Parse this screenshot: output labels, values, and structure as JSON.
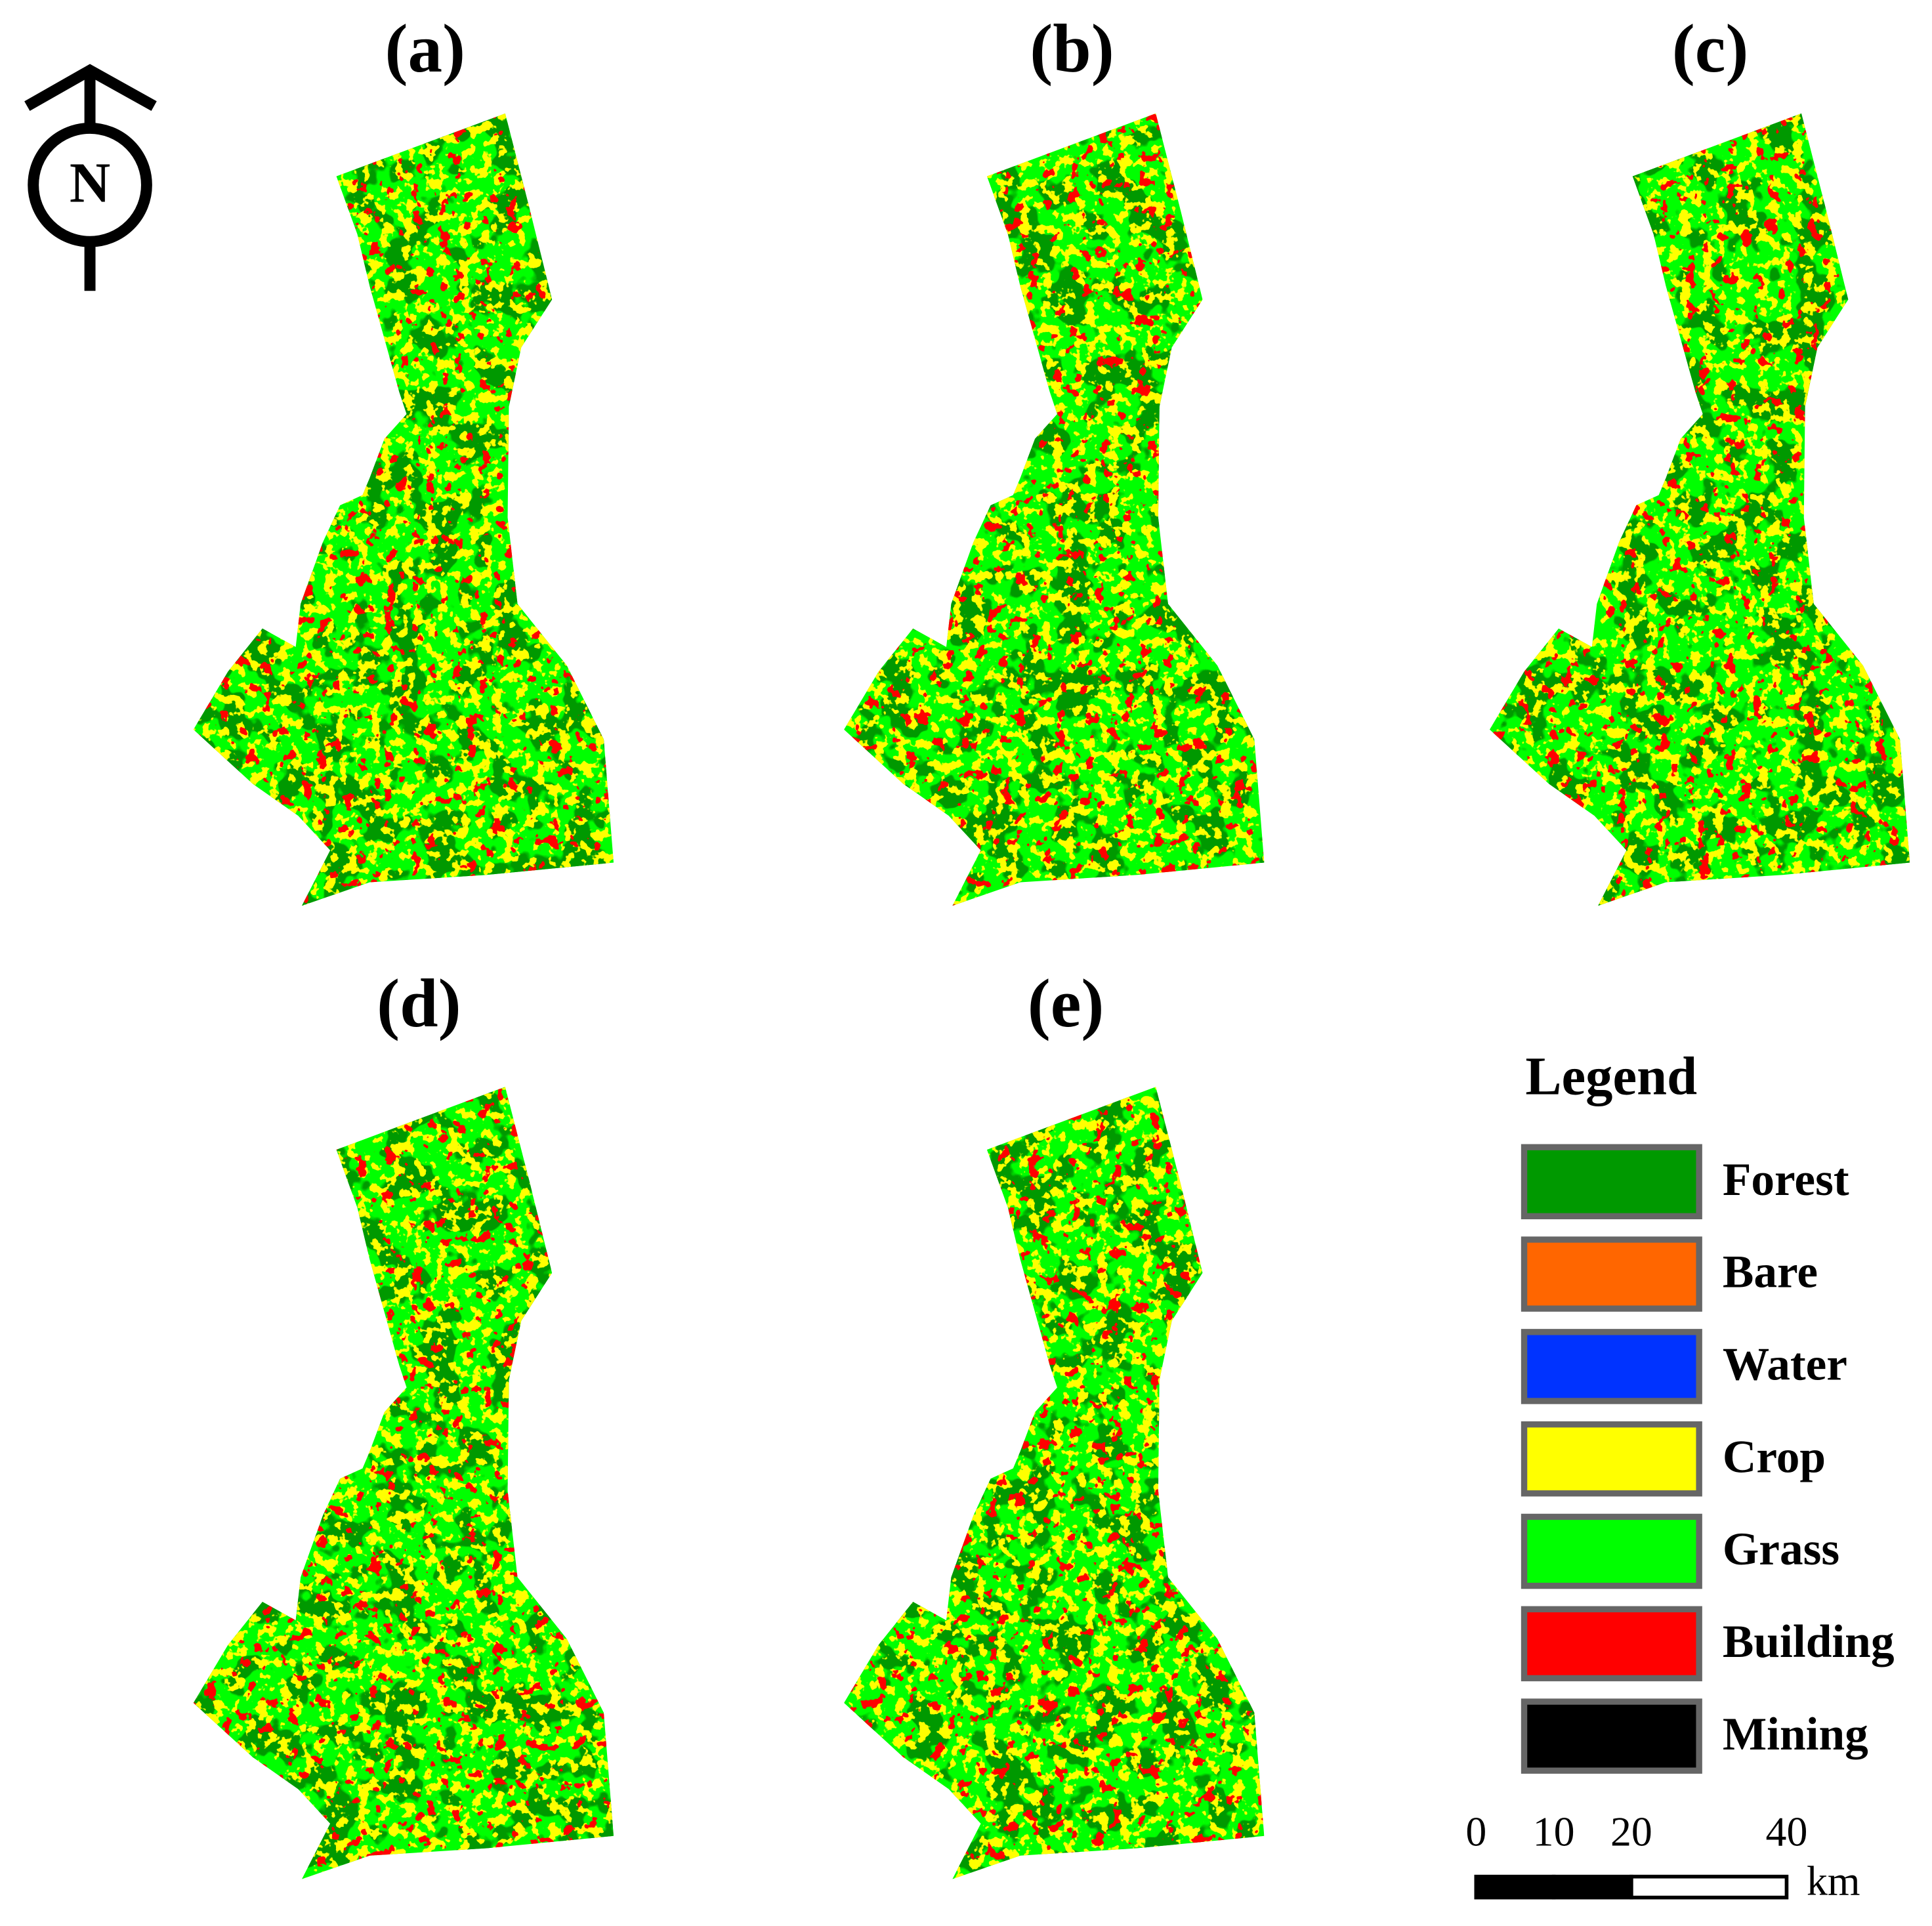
{
  "panels": [
    {
      "label": "(a)"
    },
    {
      "label": "(b)"
    },
    {
      "label": "(c)"
    },
    {
      "label": "(d)"
    },
    {
      "label": "(e)"
    }
  ],
  "north": "N",
  "legend": {
    "title": "Legend",
    "items": [
      {
        "name": "Forest",
        "color": "#009900"
      },
      {
        "name": "Bare",
        "color": "#ff6600"
      },
      {
        "name": "Water",
        "color": "#0033ff"
      },
      {
        "name": "Crop",
        "color": "#ffff00"
      },
      {
        "name": "Grass",
        "color": "#00ff00"
      },
      {
        "name": "Building",
        "color": "#ff0000"
      },
      {
        "name": "Mining",
        "color": "#000000"
      }
    ]
  },
  "scale_bar": {
    "ticks": [
      0,
      10,
      20,
      40
    ],
    "unit": "km"
  }
}
